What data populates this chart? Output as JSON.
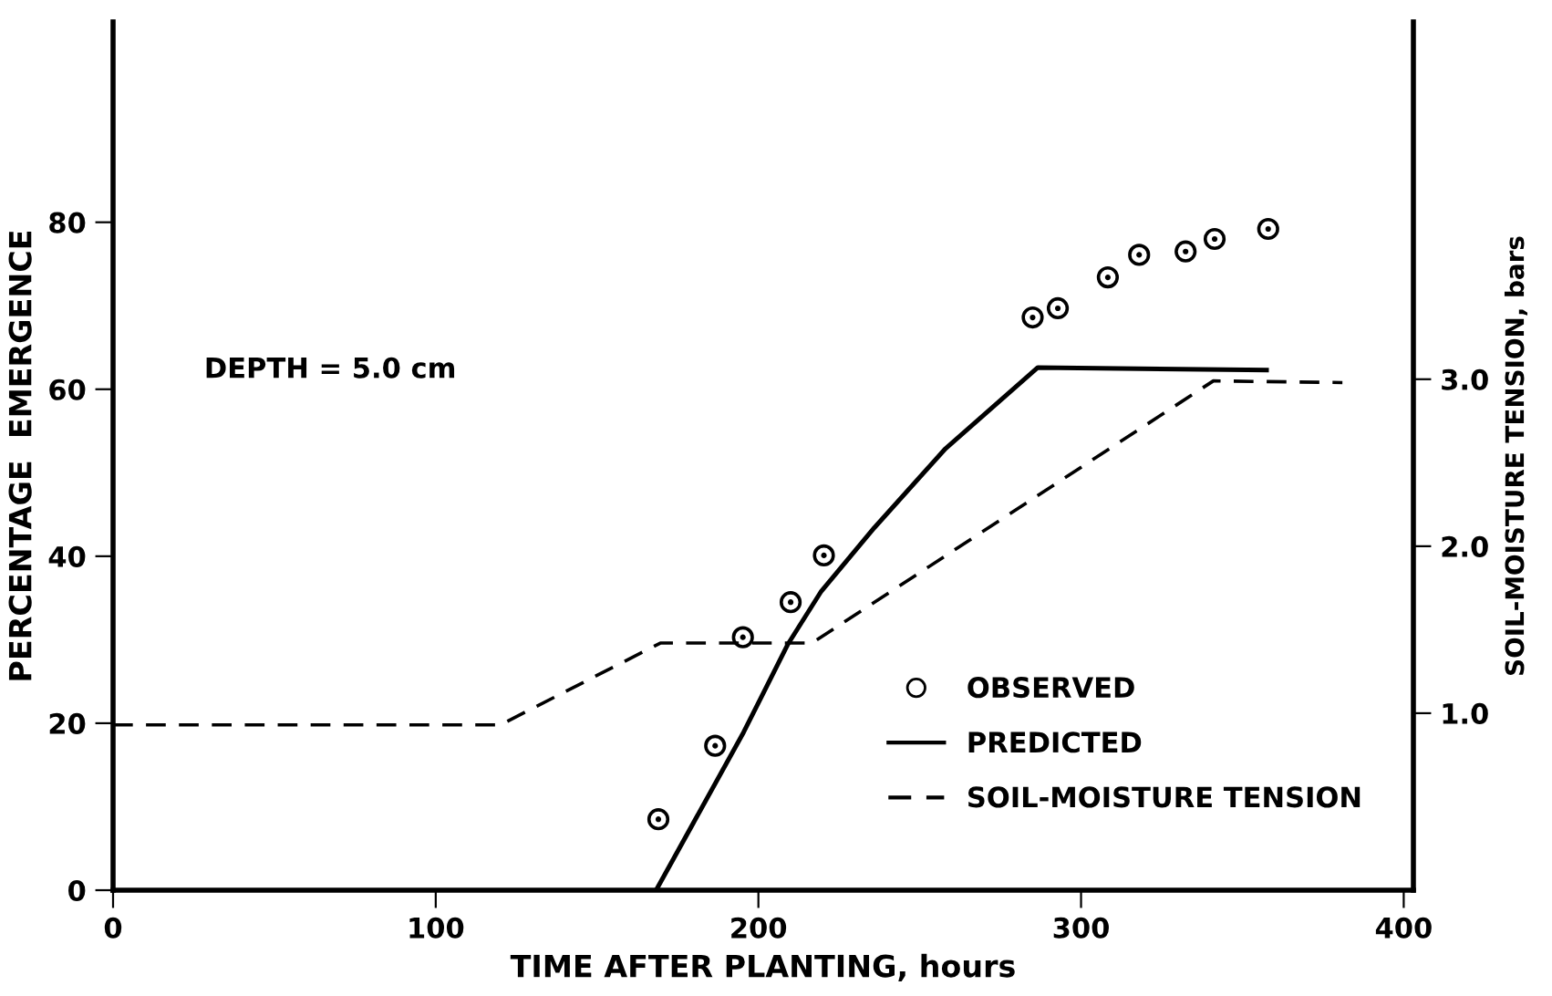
{
  "chart_data": {
    "type": "line",
    "xlabel": "TIME AFTER PLANTING, hours",
    "ylabel": "PERCENTAGE  EMERGENCE",
    "y2label": "SOIL-MOISTURE TENSION, bars",
    "annotations": [
      "DEPTH = 5.0 cm"
    ],
    "xlim": [
      0,
      403
    ],
    "xticks": [
      0,
      100,
      200,
      300,
      400
    ],
    "ylim": [
      0,
      104
    ],
    "yticks": [
      0,
      20,
      40,
      60,
      80
    ],
    "y2lim": [
      -0.06,
      5.14
    ],
    "y2ticks": [
      {
        "value": 1,
        "label": "1.0"
      },
      {
        "value": 2,
        "label": "2.0"
      },
      {
        "value": 3,
        "label": "3.0"
      }
    ],
    "legend": "bottom right",
    "grid": false,
    "series": [
      {
        "name": "OBSERVED",
        "type": "scatter",
        "color": "#000000",
        "marker": "circle",
        "x": [
          169,
          186.6,
          195.2,
          210,
          220.3,
          285,
          292.8,
          308.3,
          318,
          332.4,
          341.4,
          358
        ],
        "values": [
          8.5,
          17.3,
          30.3,
          34.5,
          40.1,
          68.6,
          69.7,
          73.4,
          76.1,
          76.5,
          78,
          79.2
        ]
      },
      {
        "name": "PREDICTED",
        "color": "#000000",
        "line_style": "solid",
        "x": [
          168.3,
          195.4,
          209.2,
          219.3,
          235.9,
          258,
          286.6,
          357.5
        ],
        "values": [
          0,
          18.9,
          29.5,
          35.7,
          43.4,
          52.9,
          62.6,
          62.3
        ]
      },
      {
        "name": "SOIL-MOISTURE TENSION",
        "axis": "y2",
        "color": "#000000",
        "line_style": "dashed",
        "x": [
          0,
          120,
          169.6,
          216.6,
          341,
          381
        ],
        "values": [
          0.93,
          0.93,
          1.42,
          1.42,
          2.99,
          2.98
        ]
      }
    ]
  }
}
